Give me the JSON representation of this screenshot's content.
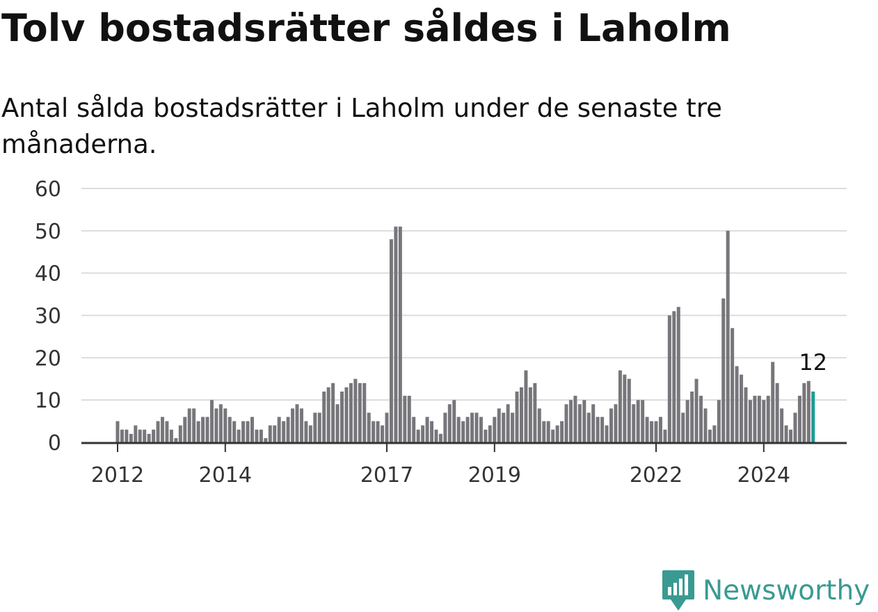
{
  "title": "Tolv bostadsrätter såldes i Laholm",
  "subtitle": "Antal sålda bostadsrätter i Laholm under de senaste tre månaderna.",
  "branding": {
    "name": "Newsworthy",
    "accent_color": "#3a9a92"
  },
  "chart_data": {
    "type": "bar",
    "title": "Tolv bostadsrätter såldes i Laholm",
    "subtitle": "Antal sålda bostadsrätter i Laholm under de senaste tre månaderna.",
    "xlabel": "",
    "ylabel": "",
    "ylim": [
      0,
      60
    ],
    "yticks": [
      0,
      10,
      20,
      30,
      40,
      50,
      60
    ],
    "grid": true,
    "start": "2012-01",
    "frequency": "monthly",
    "xticks": [
      {
        "label": "2012",
        "date": "2012-01"
      },
      {
        "label": "2014",
        "date": "2014-01"
      },
      {
        "label": "2017",
        "date": "2017-01"
      },
      {
        "label": "2019",
        "date": "2019-01"
      },
      {
        "label": "2022",
        "date": "2022-01"
      },
      {
        "label": "2024",
        "date": "2024-01"
      }
    ],
    "bar_color": "#77767b",
    "highlight_color": "#1a9e96",
    "highlight_label": "12",
    "values": [
      5,
      3,
      3,
      2,
      4,
      3,
      3,
      2,
      3,
      5,
      6,
      5,
      3,
      1,
      4,
      6,
      8,
      8,
      5,
      6,
      6,
      10,
      8,
      9,
      8,
      6,
      5,
      3,
      5,
      5,
      6,
      3,
      3,
      1,
      4,
      4,
      6,
      5,
      6,
      8,
      9,
      8,
      5,
      4,
      7,
      7,
      12,
      13,
      14,
      9,
      12,
      13,
      14,
      15,
      14,
      14,
      7,
      5,
      5,
      4,
      7,
      48,
      51,
      51,
      11,
      11,
      6,
      3,
      4,
      6,
      5,
      3,
      2,
      7,
      9,
      10,
      6,
      5,
      6,
      7,
      7,
      6,
      3,
      4,
      6,
      8,
      7,
      9,
      7,
      12,
      13,
      17,
      13,
      14,
      8,
      5,
      5,
      3,
      4,
      5,
      9,
      10,
      11,
      9,
      10,
      7,
      9,
      6,
      6,
      4,
      8,
      9,
      17,
      16,
      15,
      9,
      10,
      10,
      6,
      5,
      5,
      6,
      3,
      30,
      31,
      32,
      7,
      10,
      12,
      15,
      11,
      8,
      3,
      4,
      10,
      34,
      50,
      27,
      18,
      16,
      13,
      10,
      11,
      11,
      10,
      11,
      19,
      14,
      8,
      4,
      3,
      7,
      11,
      14,
      14.5,
      12
    ]
  }
}
